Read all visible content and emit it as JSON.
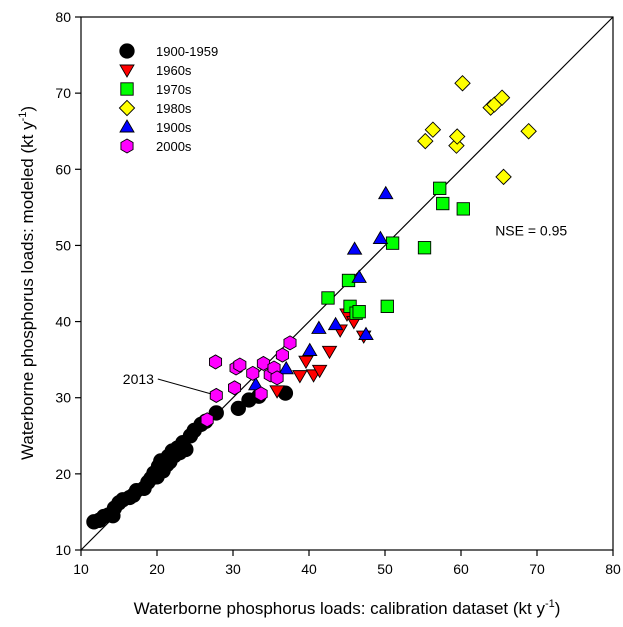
{
  "chart_data": {
    "type": "scatter",
    "title": "",
    "xlabel": "Waterborne phosphorus loads: calibration dataset (kt y",
    "xlabel_sup": "-1",
    "xlabel_end": ")",
    "ylabel": "Waterborne phosphorus loads: modeled (kt y",
    "ylabel_sup": "-1",
    "ylabel_end": ")",
    "xlim": [
      10,
      80
    ],
    "ylim": [
      10,
      80
    ],
    "xticks": [
      10,
      20,
      30,
      40,
      50,
      60,
      70,
      80
    ],
    "yticks": [
      10,
      20,
      30,
      40,
      50,
      60,
      70,
      80
    ],
    "grid": false,
    "legend_position": "top-left",
    "reference_line": {
      "kind": "1:1",
      "from": [
        10,
        10
      ],
      "to": [
        80,
        80
      ]
    },
    "annotations": [
      {
        "text": "NSE = 0.95",
        "x": 64.5,
        "y": 51.3
      },
      {
        "text": "2013",
        "x": 15.5,
        "y": 31.8,
        "arrow_to": [
          27.5,
          30.5
        ]
      }
    ],
    "series": [
      {
        "name": "1900-1959",
        "marker": "circle",
        "color": "#000000",
        "points": [
          [
            11.7,
            13.7
          ],
          [
            12.4,
            13.9
          ],
          [
            13.0,
            14.4
          ],
          [
            13.6,
            14.6
          ],
          [
            14.2,
            14.5
          ],
          [
            14.4,
            15.5
          ],
          [
            15.0,
            16.2
          ],
          [
            15.5,
            16.6
          ],
          [
            16.4,
            16.9
          ],
          [
            16.9,
            17.2
          ],
          [
            17.3,
            17.8
          ],
          [
            18.3,
            18.1
          ],
          [
            18.8,
            18.9
          ],
          [
            19.2,
            19.4
          ],
          [
            19.6,
            20.1
          ],
          [
            20.0,
            19.6
          ],
          [
            20.2,
            21.0
          ],
          [
            20.5,
            21.7
          ],
          [
            20.8,
            20.4
          ],
          [
            21.3,
            21.2
          ],
          [
            21.5,
            22.3
          ],
          [
            21.7,
            21.6
          ],
          [
            22.0,
            23.0
          ],
          [
            22.3,
            22.4
          ],
          [
            22.7,
            23.4
          ],
          [
            23.0,
            22.8
          ],
          [
            23.4,
            24.1
          ],
          [
            23.8,
            23.2
          ],
          [
            24.4,
            25.0
          ],
          [
            24.9,
            25.7
          ],
          [
            25.8,
            26.5
          ],
          [
            26.4,
            26.9
          ],
          [
            27.8,
            28.0
          ],
          [
            30.7,
            28.6
          ],
          [
            32.1,
            29.7
          ],
          [
            33.4,
            30.2
          ],
          [
            36.9,
            30.6
          ]
        ]
      },
      {
        "name": "1960s",
        "marker": "triangle-down",
        "color": "#ff0000",
        "points": [
          [
            35.8,
            30.9
          ],
          [
            38.8,
            32.9
          ],
          [
            39.6,
            34.8
          ],
          [
            40.6,
            33.0
          ],
          [
            41.4,
            33.6
          ],
          [
            42.7,
            36.1
          ],
          [
            44.1,
            38.9
          ],
          [
            45.0,
            41.0
          ],
          [
            45.9,
            40.0
          ],
          [
            47.2,
            38.1
          ]
        ]
      },
      {
        "name": "1970s",
        "marker": "square",
        "color": "#00ff00",
        "points": [
          [
            42.5,
            43.1
          ],
          [
            45.2,
            45.4
          ],
          [
            45.4,
            42.0
          ],
          [
            46.2,
            41.1
          ],
          [
            46.6,
            41.3
          ],
          [
            50.3,
            42.0
          ],
          [
            51.0,
            50.3
          ],
          [
            55.2,
            49.7
          ],
          [
            57.2,
            57.5
          ],
          [
            57.6,
            55.5
          ],
          [
            60.3,
            54.8
          ]
        ]
      },
      {
        "name": "1980s",
        "marker": "diamond",
        "color": "#ffff00",
        "points": [
          [
            55.3,
            63.7
          ],
          [
            56.3,
            65.2
          ],
          [
            59.4,
            63.1
          ],
          [
            59.5,
            64.3
          ],
          [
            60.2,
            71.3
          ],
          [
            63.9,
            68.1
          ],
          [
            64.4,
            68.5
          ],
          [
            65.4,
            69.4
          ],
          [
            65.6,
            59.0
          ],
          [
            68.9,
            65.0
          ]
        ]
      },
      {
        "name": "1900s",
        "marker": "triangle-up",
        "color": "#0000ff",
        "points": [
          [
            33.0,
            31.7
          ],
          [
            37.0,
            33.8
          ],
          [
            40.1,
            36.2
          ],
          [
            41.3,
            39.1
          ],
          [
            43.5,
            39.6
          ],
          [
            46.0,
            49.5
          ],
          [
            46.6,
            45.8
          ],
          [
            47.5,
            38.3
          ],
          [
            49.4,
            50.9
          ],
          [
            50.1,
            56.8
          ]
        ]
      },
      {
        "name": "2000s",
        "marker": "hexagon",
        "color": "#ff00ff",
        "points": [
          [
            26.6,
            27.1
          ],
          [
            27.7,
            34.7
          ],
          [
            27.8,
            30.3
          ],
          [
            30.2,
            31.3
          ],
          [
            30.4,
            33.9
          ],
          [
            30.9,
            34.3
          ],
          [
            32.6,
            33.2
          ],
          [
            33.7,
            30.5
          ],
          [
            34.0,
            34.5
          ],
          [
            34.9,
            33.0
          ],
          [
            35.4,
            33.9
          ],
          [
            35.8,
            32.6
          ],
          [
            36.5,
            35.6
          ],
          [
            37.5,
            37.2
          ]
        ]
      }
    ]
  }
}
